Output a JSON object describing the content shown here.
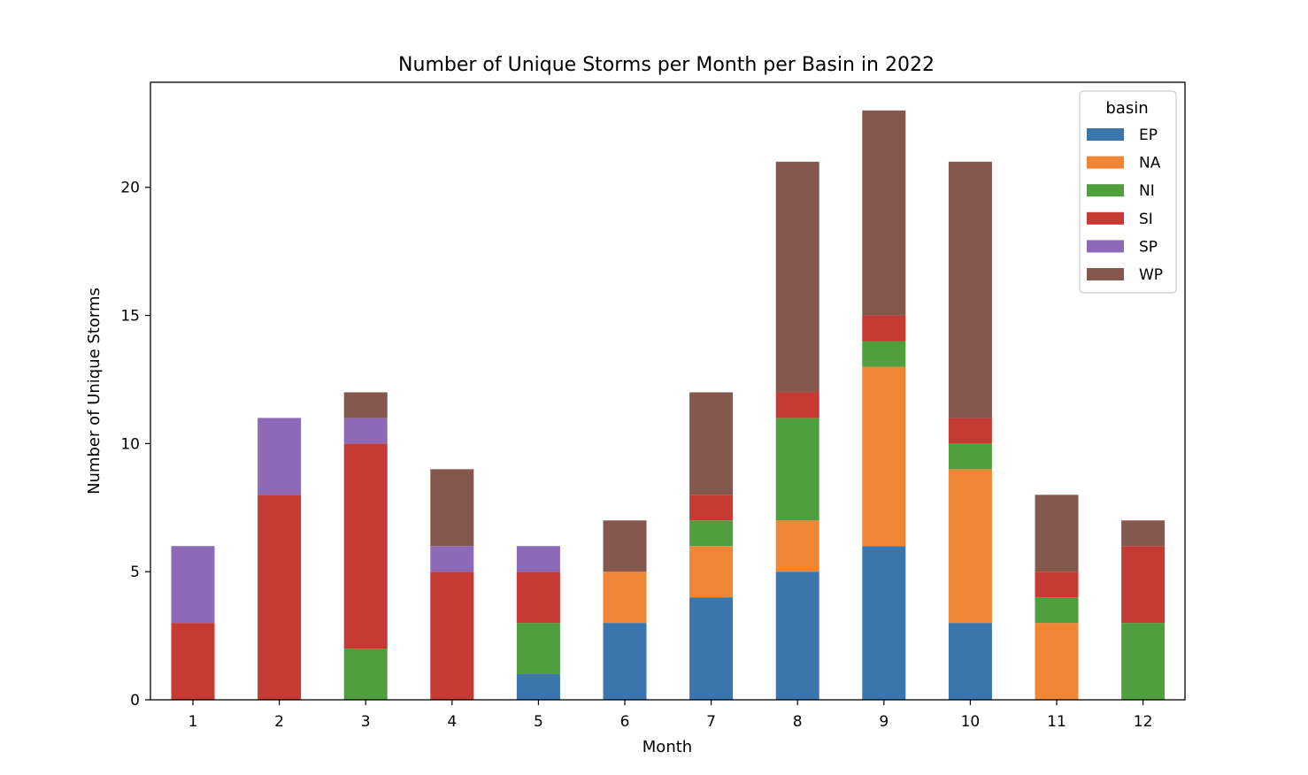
{
  "chart_data": {
    "type": "bar",
    "stacked": true,
    "title": "Number of Unique Storms per Month per Basin in 2022",
    "xlabel": "Month",
    "ylabel": "Number of Unique Storms",
    "categories": [
      "1",
      "2",
      "3",
      "4",
      "5",
      "6",
      "7",
      "8",
      "9",
      "10",
      "11",
      "12"
    ],
    "ylim": [
      0,
      24
    ],
    "yticks": [
      0,
      5,
      10,
      15,
      20
    ],
    "grid": false,
    "legend": {
      "title": "basin",
      "placement": "top-right"
    },
    "series": [
      {
        "name": "EP",
        "color": "#3a75ae",
        "values": [
          0,
          0,
          0,
          0,
          1,
          3,
          4,
          5,
          6,
          3,
          0,
          0
        ]
      },
      {
        "name": "NA",
        "color": "#ef8636",
        "values": [
          0,
          0,
          0,
          0,
          0,
          2,
          2,
          2,
          7,
          6,
          3,
          0
        ]
      },
      {
        "name": "NI",
        "color": "#519e3e",
        "values": [
          0,
          0,
          2,
          0,
          2,
          0,
          1,
          4,
          1,
          1,
          1,
          3
        ]
      },
      {
        "name": "SI",
        "color": "#c53a32",
        "values": [
          3,
          8,
          8,
          5,
          2,
          0,
          1,
          1,
          1,
          1,
          1,
          3
        ]
      },
      {
        "name": "SP",
        "color": "#8d69b8",
        "values": [
          3,
          3,
          1,
          1,
          1,
          0,
          0,
          0,
          0,
          0,
          0,
          0
        ]
      },
      {
        "name": "WP",
        "color": "#85584e",
        "values": [
          0,
          0,
          1,
          3,
          0,
          2,
          4,
          9,
          8,
          10,
          3,
          1
        ]
      }
    ]
  }
}
